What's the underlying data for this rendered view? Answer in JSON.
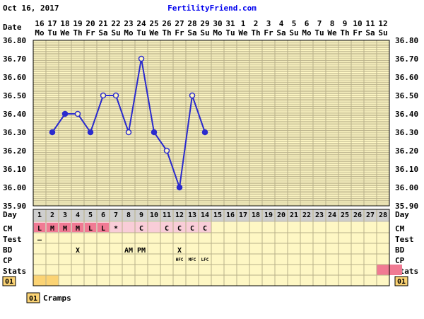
{
  "header": {
    "date_stamp": "Oct 16, 2017",
    "brand": "FertilityFriend.com"
  },
  "row_labels": {
    "date": "Date",
    "day": "Day",
    "cm": "CM",
    "test": "Test",
    "bd": "BD",
    "cp": "CP",
    "stats": "Stats"
  },
  "colors": {
    "background": "#fef7c4",
    "grid": "#b8b08a",
    "line": "#2b2bcd",
    "day_row": "#cfcfcf",
    "cm_cell": "#f9cdd8",
    "cm_red": "#f07a93",
    "legend_box": "#fbd374"
  },
  "chart_data": {
    "type": "line",
    "dates": [
      "16",
      "17",
      "18",
      "19",
      "20",
      "21",
      "22",
      "23",
      "24",
      "25",
      "26",
      "27",
      "28",
      "29",
      "30",
      "31",
      "1",
      "2",
      "3",
      "4",
      "5",
      "6",
      "7",
      "8",
      "9",
      "10",
      "11",
      "12"
    ],
    "weekdays": [
      "Mo",
      "Tu",
      "We",
      "Th",
      "Fr",
      "Sa",
      "Su",
      "Mo",
      "Tu",
      "We",
      "Th",
      "Fr",
      "Sa",
      "Su",
      "Mo",
      "Tu",
      "We",
      "Th",
      "Fr",
      "Sa",
      "Su",
      "Mo",
      "Tu",
      "We",
      "Th",
      "Fr",
      "Sa",
      "Su"
    ],
    "cycle_days": [
      "1",
      "2",
      "3",
      "4",
      "5",
      "6",
      "7",
      "8",
      "9",
      "10",
      "11",
      "12",
      "13",
      "14",
      "15",
      "16",
      "17",
      "18",
      "19",
      "20",
      "21",
      "22",
      "23",
      "24",
      "25",
      "26",
      "27",
      "28"
    ],
    "temperatures": [
      {
        "day": 2,
        "value": 36.3,
        "filled": true
      },
      {
        "day": 3,
        "value": 36.4,
        "filled": true
      },
      {
        "day": 4,
        "value": 36.4,
        "filled": false
      },
      {
        "day": 5,
        "value": 36.3,
        "filled": true
      },
      {
        "day": 6,
        "value": 36.5,
        "filled": false
      },
      {
        "day": 7,
        "value": 36.5,
        "filled": false
      },
      {
        "day": 8,
        "value": 36.3,
        "filled": false
      },
      {
        "day": 9,
        "value": 36.7,
        "filled": false
      },
      {
        "day": 10,
        "value": 36.3,
        "filled": true
      },
      {
        "day": 11,
        "value": 36.2,
        "filled": false
      },
      {
        "day": 12,
        "value": 36.0,
        "filled": true
      },
      {
        "day": 13,
        "value": 36.5,
        "filled": false
      },
      {
        "day": 14,
        "value": 36.3,
        "filled": true
      }
    ],
    "y_ticks": [
      "36.80",
      "36.70",
      "36.60",
      "36.50",
      "36.40",
      "36.30",
      "36.20",
      "36.10",
      "36.00",
      "35.90"
    ],
    "ylim": [
      35.9,
      36.8
    ],
    "grid": true,
    "cm": [
      {
        "day": 1,
        "text": "L",
        "red": true
      },
      {
        "day": 2,
        "text": "M",
        "red": true
      },
      {
        "day": 3,
        "text": "M",
        "red": true
      },
      {
        "day": 4,
        "text": "M",
        "red": true
      },
      {
        "day": 5,
        "text": "L",
        "red": true
      },
      {
        "day": 6,
        "text": "L",
        "red": true
      },
      {
        "day": 7,
        "text": "*",
        "red": false
      },
      {
        "day": 9,
        "text": "C",
        "red": false
      },
      {
        "day": 11,
        "text": "C",
        "red": false
      },
      {
        "day": 12,
        "text": "C",
        "red": false
      },
      {
        "day": 13,
        "text": "C",
        "red": false
      },
      {
        "day": 14,
        "text": "C",
        "red": false
      }
    ],
    "cm_shaded_days": 14,
    "test": [
      {
        "day": 1,
        "text": "–"
      }
    ],
    "bd": [
      {
        "day": 4,
        "text": "X"
      },
      {
        "day": 8,
        "text": "AM"
      },
      {
        "day": 9,
        "text": "PM"
      },
      {
        "day": 12,
        "text": "X"
      }
    ],
    "cp": [
      {
        "day": 12,
        "text": "HFC"
      },
      {
        "day": 13,
        "text": "MFC"
      },
      {
        "day": 14,
        "text": "LFC"
      }
    ],
    "stats_marked_days": [
      28
    ],
    "symptom_days": [
      1,
      2
    ]
  },
  "symptom_row": {
    "code": "01"
  },
  "legend": {
    "code": "01",
    "label": "Cramps"
  }
}
